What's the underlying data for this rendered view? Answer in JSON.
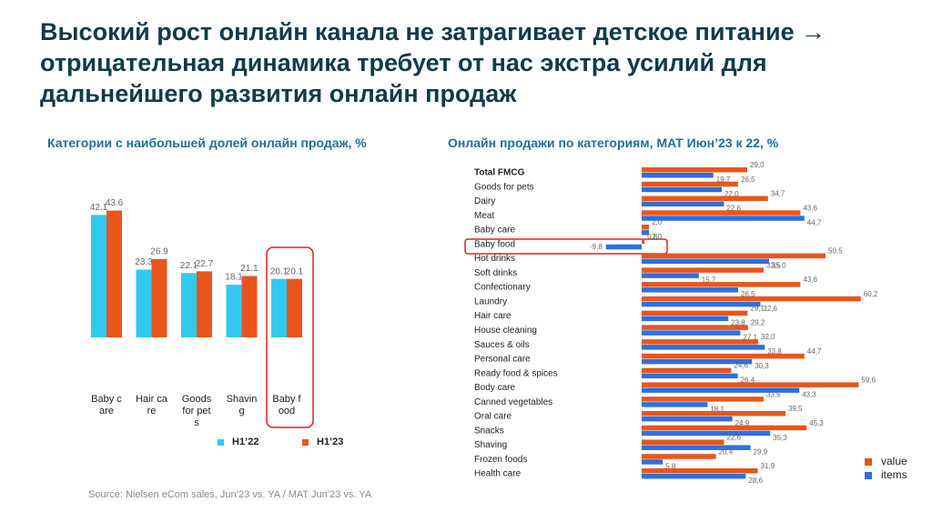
{
  "title": "Высокий рост онлайн канала не затрагивает детское питание → отрицательная динамика требует от нас экстра усилий для дальнейшего развития онлайн продаж",
  "source": "Source: Nielsen eCom sales, Jun’23 vs. YA / MAT Jun’23 vs. YA",
  "chart_data": [
    {
      "type": "bar",
      "title": "Категории с наибольшей долей онлайн продаж, %",
      "categories": [
        "Baby care",
        "Hair care",
        "Goods for pets",
        "Shaving",
        "Baby food"
      ],
      "series": [
        {
          "name": "H1’22",
          "color": "#33c8f0",
          "values": [
            42.1,
            23.3,
            22.1,
            18.1,
            20.1
          ]
        },
        {
          "name": "H1’23",
          "color": "#e8561c",
          "values": [
            43.6,
            26.9,
            22.7,
            21.1,
            20.1
          ]
        }
      ]
    },
    {
      "type": "hbar",
      "title": "Онлайн продажи по категориям, MAT Июн’23 к 22, %",
      "categories": [
        "Total FMCG",
        "Goods for pets",
        "Dairy",
        "Meat",
        "Baby care",
        "Baby food",
        "Hot drinks",
        "Soft drinks",
        "Confectionary",
        "Laundry",
        "Hair care",
        "House cleaning",
        "Sauces & oils",
        "Personal care",
        "Ready food & spices",
        "Body care",
        "Canned vegetables",
        "Oral care",
        "Snacks",
        "Shaving",
        "Frozen foods",
        "Health care"
      ],
      "series": [
        {
          "name": "value",
          "color": "#e8561c",
          "values": [
            29.0,
            26.5,
            34.7,
            43.6,
            2.0,
            0.8,
            50.5,
            33.5,
            43.6,
            60.2,
            29.1,
            29.2,
            32.0,
            44.7,
            24.6,
            59.6,
            33.5,
            39.5,
            45.3,
            22.6,
            20.4,
            31.9
          ],
          "value_labels": [
            "29,0",
            "26,5",
            "34,7",
            "43,6",
            "2,0",
            "0,8",
            "50,5",
            "33,5",
            "43,6",
            "60,2",
            "29,1",
            "29,2",
            "32,0",
            "44,7",
            "24,6",
            "59,6",
            "33,5",
            "39,5",
            "45,3",
            "22,6",
            "20,4",
            "31,9"
          ]
        },
        {
          "name": "items",
          "color": "#2f6fe0",
          "values": [
            19.7,
            22.0,
            22.6,
            44.7,
            2.0,
            -9.8,
            35.0,
            15.7,
            26.5,
            32.6,
            23.8,
            27.1,
            33.8,
            30.3,
            26.4,
            43.3,
            18.1,
            24.9,
            35.3,
            29.9,
            5.8,
            28.6
          ],
          "value_labels": [
            "19,7",
            "22,0",
            "22,6",
            "44,7",
            "2,0",
            "-9,8",
            "35,0",
            "15,7",
            "26,5",
            "32,6",
            "23,8",
            "27,1",
            "33,8",
            "30,3",
            "26,4",
            "43,3",
            "18,1",
            "24,9",
            "35,3",
            "29,9",
            "5,8",
            "28,6"
          ]
        }
      ]
    }
  ]
}
